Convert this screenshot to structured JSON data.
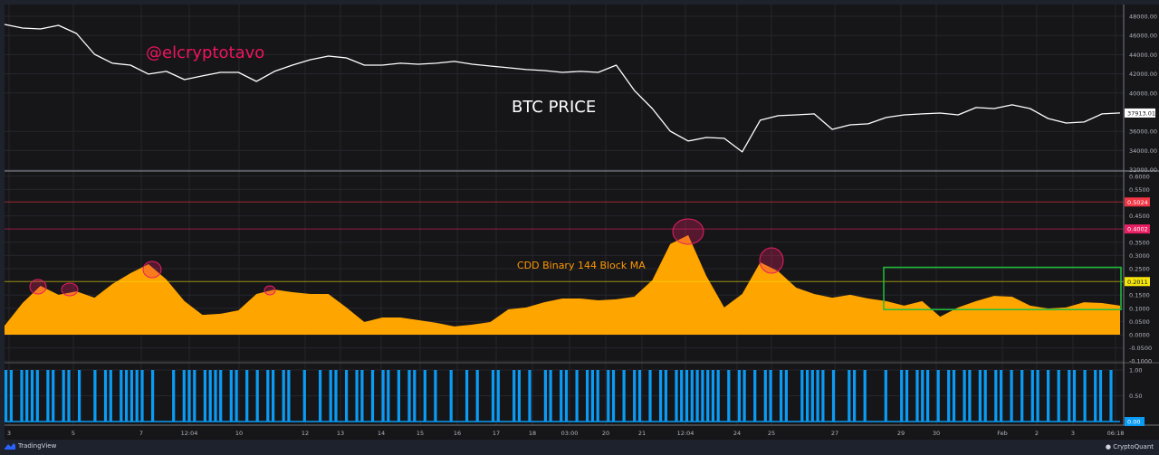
{
  "chart_data": [
    {
      "type": "line",
      "pane": "price",
      "annotations": [
        "@elcryptotavo",
        "BTC PRICE"
      ],
      "y_ticks": [
        "48000.00",
        "46000.00",
        "44000.00",
        "42000.00",
        "40000.00",
        "36000.00",
        "34000.00",
        "32000.00"
      ],
      "ylim": [
        32000,
        48000
      ],
      "last_value_label": "37913.01",
      "color": "#ffffff",
      "values": [
        47150,
        46770,
        46680,
        47060,
        46210,
        44040,
        43100,
        42910,
        41970,
        42250,
        41400,
        41780,
        42150,
        42150,
        41210,
        42250,
        42910,
        43470,
        43850,
        43660,
        42910,
        42910,
        43100,
        43000,
        43100,
        43290,
        43000,
        42810,
        42630,
        42440,
        42340,
        42150,
        42250,
        42150,
        42910,
        40270,
        38380,
        36020,
        34990,
        35360,
        35270,
        33860,
        37160,
        37630,
        37720,
        37820,
        36210,
        36680,
        36780,
        37440,
        37720,
        37820,
        37910,
        37720,
        38480,
        38380,
        38760,
        38380,
        37340,
        36870,
        36970,
        37820,
        37913
      ]
    },
    {
      "type": "area",
      "pane": "cdd",
      "series_label": "CDD Binary 144 Block MA",
      "y_ticks": [
        "0.6000",
        "0.5500",
        "0.4500",
        "0.3500",
        "0.3000",
        "0.2500",
        "0.1500",
        "0.1000",
        "0.0500",
        "0.0000",
        "-0.0500",
        "-0.1000"
      ],
      "ylim": [
        -0.1,
        0.6
      ],
      "reference_lines": [
        {
          "label": "0.5024",
          "value": 0.5024,
          "color": "#f23645"
        },
        {
          "label": "0.4002",
          "value": 0.4002,
          "color": "#e91e63"
        },
        {
          "label": "0.2011",
          "value": 0.2011,
          "color": "#f5e50a"
        }
      ],
      "color": "#ffa500",
      "values": [
        0.034,
        0.12,
        0.185,
        0.151,
        0.164,
        0.14,
        0.192,
        0.233,
        0.267,
        0.209,
        0.127,
        0.075,
        0.079,
        0.092,
        0.154,
        0.171,
        0.161,
        0.154,
        0.154,
        0.103,
        0.048,
        0.065,
        0.065,
        0.055,
        0.045,
        0.031,
        0.038,
        0.048,
        0.096,
        0.103,
        0.123,
        0.137,
        0.137,
        0.13,
        0.134,
        0.144,
        0.206,
        0.343,
        0.377,
        0.223,
        0.103,
        0.154,
        0.274,
        0.24,
        0.178,
        0.154,
        0.14,
        0.151,
        0.137,
        0.127,
        0.11,
        0.127,
        0.068,
        0.103,
        0.127,
        0.147,
        0.144,
        0.11,
        0.099,
        0.103,
        0.123,
        0.12,
        0.11
      ],
      "highlight_box": {
        "color": "#1fbf3a",
        "value_range": [
          0.095,
          0.255
        ],
        "x_range": [
          "28",
          "Feb 3"
        ]
      },
      "peak_circles_color": "#e91e63"
    },
    {
      "type": "bar",
      "pane": "binary",
      "y_ticks": [
        "1.00",
        "0.50"
      ],
      "ylim": [
        0,
        1
      ],
      "last_value_label": "0.00",
      "color": "#0a9cf5",
      "values": "110111101101101001011011111010001011101111011010101101100100101101011010110101101010010010100110011010011011010111011010110101101111111110101101011011001111101001101000100110111010110110110110101011010101101011010"
    }
  ],
  "x_ticks": [
    "3",
    "5",
    "7",
    "12:04",
    "10",
    "12",
    "13",
    "14",
    "15",
    "16",
    "17",
    "18",
    "03:00",
    "20",
    "21",
    "12:04",
    "24",
    "25",
    "27",
    "29",
    "30",
    "Feb",
    "2",
    "3",
    "06:18"
  ],
  "footer": {
    "left_brand": "TradingView",
    "right_brand": "CryptoQuant"
  }
}
